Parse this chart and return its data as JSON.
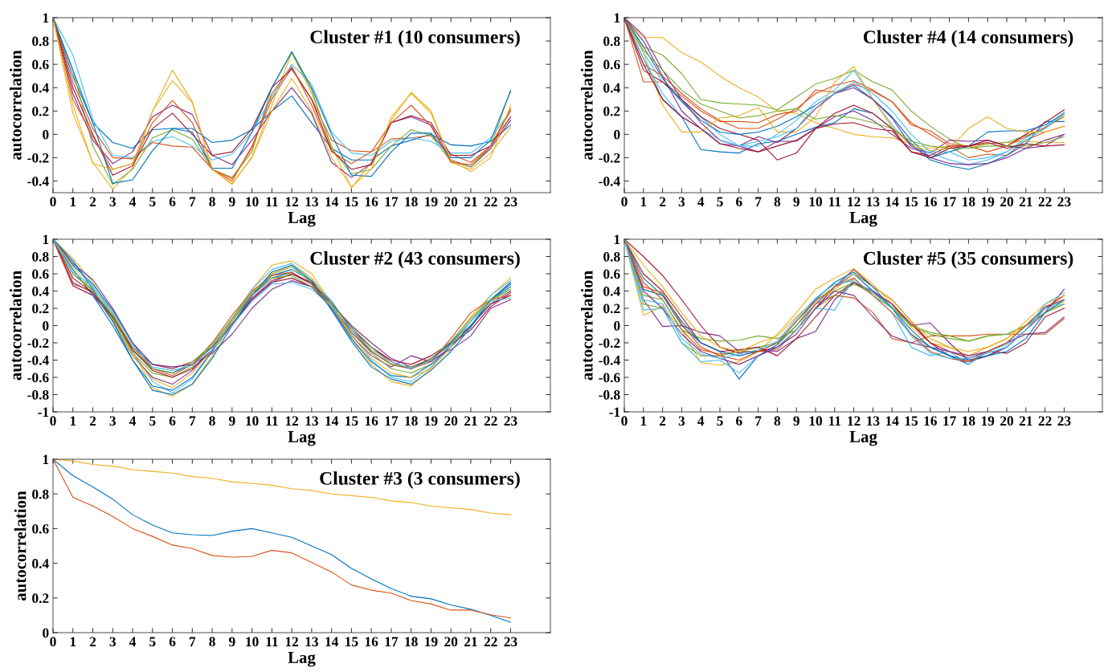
{
  "chart_data": [
    {
      "type": "line",
      "title": "Cluster #1 (10 consumers)",
      "xlabel": "Lag",
      "ylabel": "autocorrelation",
      "grid": false,
      "marker": "none",
      "line_style": "solid",
      "xlim": [
        0,
        25
      ],
      "xticks": [
        0,
        1,
        2,
        3,
        4,
        5,
        6,
        7,
        8,
        9,
        10,
        11,
        12,
        13,
        14,
        15,
        16,
        17,
        18,
        19,
        20,
        21,
        22,
        23
      ],
      "ylim": [
        -0.5,
        1
      ],
      "yticks": [
        -0.4,
        -0.2,
        0,
        0.2,
        0.4,
        0.6,
        0.8,
        1
      ],
      "x": [
        0,
        1,
        2,
        3,
        4,
        5,
        6,
        7,
        8,
        9,
        10,
        11,
        12,
        13,
        14,
        15,
        16,
        17,
        18,
        19,
        20,
        21,
        22,
        23
      ],
      "series": [
        {
          "color": "#0072bd",
          "values": [
            1,
            0.5,
            0.1,
            -0.07,
            -0.12,
            0.04,
            0.05,
            0.05,
            -0.07,
            -0.05,
            0.04,
            0.2,
            0.33,
            0.1,
            -0.12,
            -0.22,
            -0.22,
            -0.1,
            -0.05,
            0,
            -0.09,
            -0.1,
            -0.06,
            0.08
          ]
        },
        {
          "color": "#d95319",
          "values": [
            1,
            0.45,
            0.05,
            -0.2,
            -0.21,
            -0.07,
            -0.1,
            -0.11,
            -0.3,
            -0.4,
            -0.1,
            0.3,
            0.57,
            0.3,
            -0.05,
            -0.14,
            -0.15,
            -0.04,
            -0.03,
            -0.01,
            -0.17,
            -0.24,
            -0.1,
            0.22
          ]
        },
        {
          "color": "#edb120",
          "values": [
            1,
            0.18,
            -0.24,
            -0.47,
            -0.29,
            0.2,
            0.55,
            0.28,
            -0.3,
            -0.43,
            -0.19,
            0.25,
            0.7,
            0.35,
            -0.1,
            -0.46,
            -0.24,
            0.12,
            0.36,
            0.2,
            -0.24,
            -0.3,
            -0.16,
            0.06
          ]
        },
        {
          "color": "#7e2f8e",
          "values": [
            1,
            0.35,
            -0.05,
            -0.25,
            -0.15,
            0.15,
            0.25,
            0.17,
            -0.18,
            -0.26,
            -0.05,
            0.2,
            0.4,
            0.18,
            -0.24,
            -0.37,
            -0.25,
            0.1,
            0.15,
            0.08,
            -0.22,
            -0.28,
            -0.12,
            0.12
          ]
        },
        {
          "color": "#77ac30",
          "values": [
            1,
            0.55,
            -0.1,
            -0.43,
            -0.3,
            -0.03,
            0.04,
            -0.04,
            -0.3,
            -0.37,
            -0.15,
            0.4,
            0.7,
            0.38,
            -0.12,
            -0.34,
            -0.3,
            -0.1,
            0.04,
            -0.01,
            -0.23,
            -0.28,
            -0.1,
            0.38
          ]
        },
        {
          "color": "#4dbeee",
          "values": [
            1,
            0.68,
            0.13,
            -0.18,
            -0.2,
            -0.06,
            -0.02,
            -0.1,
            -0.22,
            -0.17,
            0.02,
            0.32,
            0.6,
            0.43,
            0.02,
            -0.16,
            -0.18,
            -0.06,
            -0.03,
            -0.06,
            -0.16,
            -0.16,
            -0.03,
            0.2
          ]
        },
        {
          "color": "#a2142f",
          "values": [
            1,
            0.4,
            0,
            -0.35,
            -0.27,
            0.05,
            0.18,
            0,
            -0.18,
            -0.15,
            0.05,
            0.4,
            0.56,
            0.3,
            -0.14,
            -0.3,
            -0.26,
            0.1,
            0.16,
            0.1,
            -0.18,
            -0.18,
            -0.1,
            0.15
          ]
        },
        {
          "color": "#0072bd",
          "values": [
            1,
            0.55,
            0.1,
            -0.42,
            -0.39,
            -0.14,
            0.05,
            0.02,
            -0.29,
            -0.29,
            0.02,
            0.4,
            0.71,
            0.4,
            0,
            -0.35,
            -0.36,
            -0.15,
            0.01,
            0.01,
            -0.2,
            -0.2,
            -0.05,
            0.37
          ]
        },
        {
          "color": "#d95319",
          "values": [
            1,
            0.3,
            -0.02,
            -0.3,
            -0.25,
            0.1,
            0.29,
            0.1,
            -0.3,
            -0.38,
            -0.12,
            0.35,
            0.58,
            0.25,
            -0.15,
            -0.25,
            -0.15,
            0.1,
            0.25,
            0.07,
            -0.24,
            -0.26,
            -0.1,
            0.2
          ]
        },
        {
          "color": "#edb120",
          "values": [
            1,
            0.25,
            -0.25,
            -0.3,
            -0.25,
            0.2,
            0.46,
            0.27,
            -0.3,
            -0.42,
            -0.2,
            0.2,
            0.48,
            0.2,
            -0.2,
            -0.45,
            -0.3,
            0.15,
            0.35,
            0.18,
            -0.22,
            -0.32,
            -0.2,
            0.25
          ]
        }
      ]
    },
    {
      "type": "line",
      "title": "Cluster #4 (14 consumers)",
      "xlabel": "Lag",
      "ylabel": "autocorrelation",
      "grid": false,
      "marker": "none",
      "line_style": "solid",
      "xlim": [
        0,
        25
      ],
      "xticks": [
        0,
        1,
        2,
        3,
        4,
        5,
        6,
        7,
        8,
        9,
        10,
        11,
        12,
        13,
        14,
        15,
        16,
        17,
        18,
        19,
        20,
        21,
        22,
        23
      ],
      "ylim": [
        -0.5,
        1
      ],
      "yticks": [
        -0.4,
        -0.2,
        0,
        0.2,
        0.4,
        0.6,
        0.8,
        1
      ],
      "x": [
        0,
        1,
        2,
        3,
        4,
        5,
        6,
        7,
        8,
        9,
        10,
        11,
        12,
        13,
        14,
        15,
        16,
        17,
        18,
        19,
        20,
        21,
        22,
        23
      ],
      "series": [
        {
          "color": "#edb120",
          "values": [
            1,
            0.83,
            0.83,
            0.7,
            0.62,
            0.5,
            0.4,
            0.32,
            0.2,
            0.18,
            0.1,
            0.05,
            0,
            -0.02,
            -0.03,
            -0.08,
            -0.12,
            -0.1,
            -0.1,
            -0.08,
            -0.07,
            -0.06,
            -0.07,
            -0.07
          ]
        },
        {
          "color": "#77ac30",
          "values": [
            1,
            0.75,
            0.68,
            0.52,
            0.3,
            0.27,
            0.26,
            0.25,
            0.21,
            0.32,
            0.43,
            0.48,
            0.55,
            0.45,
            0.38,
            0.2,
            0.07,
            -0.04,
            -0.12,
            -0.08,
            -0.07,
            -0.01,
            0.05,
            0.17
          ]
        },
        {
          "color": "#d95319",
          "values": [
            1,
            0.45,
            0.45,
            0.33,
            0.2,
            0.11,
            0.11,
            0.1,
            0.17,
            0.2,
            0.38,
            0.36,
            0.43,
            0.37,
            0.28,
            0.1,
            0,
            -0.1,
            -0.2,
            -0.17,
            -0.18,
            -0.05,
            0.02,
            0.07
          ]
        },
        {
          "color": "#0072bd",
          "values": [
            1,
            0.65,
            0.3,
            0.15,
            -0.13,
            -0.15,
            -0.16,
            -0.08,
            -0.06,
            0,
            0.06,
            0.1,
            0.22,
            0.18,
            0.05,
            -0.08,
            -0.22,
            -0.27,
            -0.3,
            -0.25,
            -0.18,
            -0.08,
            0.11,
            0.11
          ]
        },
        {
          "color": "#7e2f8e",
          "values": [
            1,
            0.8,
            0.5,
            0.2,
            0.05,
            -0.08,
            -0.1,
            -0.15,
            -0.06,
            -0.06,
            0.05,
            0.15,
            0.2,
            0.12,
            0,
            -0.12,
            -0.16,
            -0.05,
            -0.06,
            -0.05,
            -0.1,
            -0.12,
            -0.1,
            0
          ]
        },
        {
          "color": "#4dbeee",
          "values": [
            1,
            0.7,
            0.45,
            0.28,
            0.15,
            0,
            -0.1,
            -0.1,
            0,
            0.12,
            0.28,
            0.38,
            0.55,
            0.3,
            0.08,
            -0.1,
            -0.16,
            -0.22,
            -0.26,
            -0.22,
            -0.15,
            -0.03,
            0.06,
            0.19
          ]
        },
        {
          "color": "#a2142f",
          "values": [
            1,
            0.55,
            0.45,
            0.3,
            0.15,
            0.05,
            0,
            -0.05,
            -0.22,
            -0.16,
            0.05,
            0.09,
            0.1,
            0.05,
            0.03,
            -0.15,
            -0.18,
            -0.1,
            -0.1,
            -0.05,
            -0.1,
            0,
            0.1,
            0.21
          ]
        },
        {
          "color": "#0072bd",
          "values": [
            1,
            0.75,
            0.48,
            0.28,
            0.12,
            0.02,
            0,
            0.02,
            0.07,
            0.15,
            0.25,
            0.35,
            0.42,
            0.3,
            0.15,
            -0.05,
            -0.2,
            -0.15,
            -0.1,
            0.02,
            0.03,
            0.03,
            0.08,
            0.18
          ]
        },
        {
          "color": "#d95319",
          "values": [
            1,
            0.6,
            0.5,
            0.35,
            0.22,
            0.12,
            0.05,
            0.05,
            0.13,
            0.22,
            0.35,
            0.42,
            0.46,
            0.38,
            0.28,
            0.08,
            0.03,
            -0.08,
            -0.1,
            -0.15,
            -0.1,
            -0.02,
            0.06,
            0.15
          ]
        },
        {
          "color": "#edb120",
          "values": [
            1,
            0.7,
            0.25,
            0.02,
            0.02,
            0.14,
            0.16,
            0.23,
            0.02,
            0.02,
            0.15,
            0.45,
            0.58,
            0.3,
            0.06,
            -0.1,
            -0.14,
            -0.12,
            0.05,
            0.15,
            0.05,
            0.02,
            0.02,
            0.07
          ]
        },
        {
          "color": "#7e2f8e",
          "values": [
            1,
            0.85,
            0.55,
            0.3,
            0.1,
            -0.05,
            -0.1,
            -0.02,
            -0.07,
            0.05,
            0.22,
            0.35,
            0.4,
            0.3,
            0.14,
            -0.1,
            -0.2,
            -0.25,
            -0.26,
            -0.25,
            -0.2,
            -0.12,
            -0.05,
            0
          ]
        },
        {
          "color": "#77ac30",
          "values": [
            1,
            0.72,
            0.55,
            0.38,
            0.26,
            0.2,
            0.14,
            0.16,
            0.2,
            0.22,
            0.13,
            0.16,
            0.14,
            0.1,
            0.05,
            -0.06,
            -0.1,
            -0.12,
            -0.12,
            -0.1,
            -0.1,
            -0.1,
            -0.07,
            -0.02
          ]
        },
        {
          "color": "#4dbeee",
          "values": [
            1,
            0.65,
            0.35,
            0.15,
            0.05,
            -0.05,
            -0.1,
            -0.06,
            -0.02,
            0.05,
            0.25,
            0.35,
            0.45,
            0.35,
            0.2,
            0,
            -0.15,
            -0.15,
            -0.22,
            -0.2,
            -0.15,
            -0.05,
            0.05,
            0.18
          ]
        },
        {
          "color": "#a2142f",
          "values": [
            1,
            0.6,
            0.3,
            0.15,
            0.05,
            -0.08,
            -0.12,
            -0.15,
            -0.1,
            -0.05,
            0.05,
            0.18,
            0.25,
            0.18,
            0.05,
            -0.15,
            -0.2,
            -0.12,
            -0.1,
            -0.07,
            -0.12,
            -0.08,
            -0.1,
            -0.09
          ]
        }
      ]
    },
    {
      "type": "line",
      "title": "Cluster #2 (43 consumers)",
      "xlabel": "Lag",
      "ylabel": "autocorrelation",
      "grid": false,
      "marker": "none",
      "line_style": "solid",
      "xlim": [
        0,
        25
      ],
      "xticks": [
        0,
        1,
        2,
        3,
        4,
        5,
        6,
        7,
        8,
        9,
        10,
        11,
        12,
        13,
        14,
        15,
        16,
        17,
        18,
        19,
        20,
        21,
        22,
        23
      ],
      "ylim": [
        -1,
        1
      ],
      "yticks": [
        -1,
        -0.8,
        -0.6,
        -0.4,
        -0.2,
        0,
        0.2,
        0.4,
        0.6,
        0.8,
        1
      ],
      "x": [
        0,
        1,
        2,
        3,
        4,
        5,
        6,
        7,
        8,
        9,
        10,
        11,
        12,
        13,
        14,
        15,
        16,
        17,
        18,
        19,
        20,
        21,
        22,
        23
      ],
      "series": [
        {
          "color": "#edb120",
          "values": [
            1,
            0.78,
            0.5,
            0.15,
            -0.3,
            -0.72,
            -0.82,
            -0.68,
            -0.35,
            0.05,
            0.42,
            0.7,
            0.75,
            0.6,
            0.25,
            -0.15,
            -0.45,
            -0.65,
            -0.7,
            -0.5,
            -0.2,
            0.1,
            0.35,
            0.55
          ]
        },
        {
          "color": "#a2142f",
          "values": [
            1,
            0.46,
            0.35,
            0.1,
            -0.25,
            -0.45,
            -0.5,
            -0.42,
            -0.25,
            0,
            0.3,
            0.5,
            0.55,
            0.45,
            0.2,
            -0.05,
            -0.25,
            -0.4,
            -0.45,
            -0.35,
            -0.2,
            0,
            0.25,
            0.35
          ]
        },
        {
          "color": "#0072bd",
          "values": [
            1,
            0.7,
            0.48,
            0.18,
            -0.2,
            -0.5,
            -0.55,
            -0.45,
            -0.25,
            0.05,
            0.35,
            0.58,
            0.65,
            0.52,
            0.28,
            -0.05,
            -0.3,
            -0.45,
            -0.5,
            -0.4,
            -0.2,
            0.05,
            0.3,
            0.45
          ]
        },
        {
          "color": "#4dbeee",
          "values": [
            1,
            0.75,
            0.45,
            0.12,
            -0.3,
            -0.65,
            -0.78,
            -0.62,
            -0.3,
            0.08,
            0.42,
            0.65,
            0.72,
            0.55,
            0.25,
            -0.1,
            -0.4,
            -0.6,
            -0.65,
            -0.48,
            -0.22,
            0.05,
            0.35,
            0.52
          ]
        },
        {
          "color": "#7e2f8e",
          "values": [
            1,
            0.5,
            0.38,
            0.05,
            -0.35,
            -0.6,
            -0.68,
            -0.52,
            -0.28,
            0.02,
            0.3,
            0.5,
            0.6,
            0.48,
            0.2,
            -0.12,
            -0.35,
            -0.48,
            -0.35,
            -0.42,
            -0.25,
            0,
            0.25,
            0.4
          ]
        },
        {
          "color": "#77ac30",
          "values": [
            1,
            0.6,
            0.42,
            0.08,
            -0.32,
            -0.55,
            -0.6,
            -0.48,
            -0.22,
            0.08,
            0.38,
            0.6,
            0.68,
            0.5,
            0.22,
            -0.08,
            -0.32,
            -0.5,
            -0.55,
            -0.45,
            -0.25,
            0,
            0.28,
            0.42
          ]
        },
        {
          "color": "#0072bd",
          "values": [
            1,
            0.65,
            0.35,
            0,
            -0.4,
            -0.7,
            -0.75,
            -0.6,
            -0.3,
            0.05,
            0.35,
            0.55,
            0.62,
            0.48,
            0.2,
            -0.15,
            -0.42,
            -0.58,
            -0.6,
            -0.45,
            -0.25,
            0,
            0.3,
            0.48
          ]
        },
        {
          "color": "#7e2f8e",
          "values": [
            1,
            0.72,
            0.53,
            0.2,
            -0.2,
            -0.45,
            -0.48,
            -0.45,
            -0.32,
            -0.1,
            0.2,
            0.42,
            0.52,
            0.45,
            0.25,
            0,
            -0.2,
            -0.38,
            -0.48,
            -0.4,
            -0.28,
            -0.12,
            0.2,
            0.3
          ]
        },
        {
          "color": "#d95319",
          "values": [
            1,
            0.48,
            0.4,
            0.12,
            -0.28,
            -0.5,
            -0.58,
            -0.45,
            -0.2,
            0.12,
            0.4,
            0.58,
            0.62,
            0.48,
            0.22,
            -0.08,
            -0.3,
            -0.45,
            -0.5,
            -0.42,
            -0.15,
            0.15,
            0.3,
            0.35
          ]
        },
        {
          "color": "#edb120",
          "values": [
            1,
            0.68,
            0.4,
            0.05,
            -0.35,
            -0.62,
            -0.72,
            -0.55,
            -0.28,
            0.05,
            0.38,
            0.6,
            0.7,
            0.55,
            0.22,
            -0.12,
            -0.38,
            -0.55,
            -0.6,
            -0.5,
            -0.25,
            0.05,
            0.3,
            0.5
          ]
        },
        {
          "color": "#a2142f",
          "values": [
            1,
            0.55,
            0.38,
            0.1,
            -0.28,
            -0.52,
            -0.6,
            -0.5,
            -0.28,
            0,
            0.32,
            0.52,
            0.6,
            0.5,
            0.25,
            -0.02,
            -0.25,
            -0.42,
            -0.5,
            -0.38,
            -0.22,
            -0.05,
            0.22,
            0.38
          ]
        },
        {
          "color": "#0072bd",
          "values": [
            1,
            0.75,
            0.42,
            0.05,
            -0.4,
            -0.75,
            -0.8,
            -0.68,
            -0.38,
            0,
            0.35,
            0.62,
            0.7,
            0.52,
            0.18,
            -0.18,
            -0.48,
            -0.62,
            -0.68,
            -0.52,
            -0.3,
            -0.02,
            0.3,
            0.5
          ]
        },
        {
          "color": "#77ac30",
          "values": [
            1,
            0.6,
            0.4,
            0.12,
            -0.25,
            -0.5,
            -0.55,
            -0.42,
            -0.22,
            0.08,
            0.38,
            0.55,
            0.58,
            0.45,
            0.25,
            -0.02,
            -0.25,
            -0.45,
            -0.48,
            -0.38,
            -0.18,
            0.08,
            0.3,
            0.42
          ]
        },
        {
          "color": "#4dbeee",
          "values": [
            1,
            0.62,
            0.45,
            0.15,
            -0.22,
            -0.48,
            -0.52,
            -0.46,
            -0.28,
            0,
            0.28,
            0.48,
            0.5,
            0.42,
            0.22,
            -0.05,
            -0.28,
            -0.42,
            -0.5,
            -0.4,
            -0.22,
            0.05,
            0.28,
            0.32
          ]
        }
      ]
    },
    {
      "type": "line",
      "title": "Cluster #5 (35 consumers)",
      "xlabel": "Lag",
      "ylabel": "autocorrelation",
      "grid": false,
      "marker": "none",
      "line_style": "solid",
      "xlim": [
        0,
        25
      ],
      "xticks": [
        0,
        1,
        2,
        3,
        4,
        5,
        6,
        7,
        8,
        9,
        10,
        11,
        12,
        13,
        14,
        15,
        16,
        17,
        18,
        19,
        20,
        21,
        22,
        23
      ],
      "ylim": [
        -1,
        1
      ],
      "yticks": [
        -1,
        -0.8,
        -0.6,
        -0.4,
        -0.2,
        0,
        0.2,
        0.4,
        0.6,
        0.8,
        1
      ],
      "x": [
        0,
        1,
        2,
        3,
        4,
        5,
        6,
        7,
        8,
        9,
        10,
        11,
        12,
        13,
        14,
        15,
        16,
        17,
        18,
        19,
        20,
        21,
        22,
        23
      ],
      "series": [
        {
          "color": "#a2142f",
          "values": [
            1,
            0.8,
            0.58,
            0.3,
            0,
            -0.25,
            -0.32,
            -0.3,
            -0.25,
            -0.05,
            0.2,
            0.45,
            0.65,
            0.45,
            0.3,
            0.05,
            -0.2,
            -0.35,
            -0.42,
            -0.35,
            -0.25,
            -0.05,
            0.2,
            0.35
          ]
        },
        {
          "color": "#edb120",
          "values": [
            1,
            0.12,
            0.22,
            -0.05,
            -0.43,
            -0.46,
            -0.42,
            -0.3,
            -0.1,
            0.15,
            0.42,
            0.55,
            0.66,
            0.48,
            0.25,
            -0.02,
            -0.2,
            -0.25,
            -0.35,
            -0.25,
            -0.15,
            0,
            0.15,
            0.28
          ]
        },
        {
          "color": "#0072bd",
          "values": [
            1,
            0.42,
            0.35,
            0,
            -0.2,
            -0.3,
            -0.62,
            -0.35,
            -0.22,
            0,
            0.25,
            0.45,
            0.6,
            0.4,
            0.2,
            -0.1,
            -0.25,
            -0.35,
            -0.45,
            -0.3,
            -0.2,
            0,
            0.2,
            0.3
          ]
        },
        {
          "color": "#7e2f8e",
          "values": [
            1,
            0.3,
            -0.01,
            0,
            -0.08,
            -0.12,
            -0.3,
            -0.3,
            -0.3,
            -0.15,
            -0.07,
            0.3,
            0.5,
            0.4,
            0.25,
            0,
            0.03,
            -0.2,
            -0.4,
            -0.35,
            -0.25,
            -0.05,
            0.15,
            0.42
          ]
        },
        {
          "color": "#d95319",
          "values": [
            1,
            0.5,
            0.3,
            -0.05,
            -0.28,
            -0.33,
            -0.3,
            -0.3,
            -0.28,
            -0.05,
            0.25,
            0.35,
            0.32,
            0.15,
            -0.15,
            -0.2,
            -0.12,
            -0.12,
            -0.12,
            -0.1,
            -0.1,
            -0.1,
            -0.1,
            0.08
          ]
        },
        {
          "color": "#77ac30",
          "values": [
            1,
            0.25,
            0.2,
            -0.2,
            -0.35,
            -0.35,
            -0.3,
            -0.25,
            -0.2,
            0,
            0.3,
            0.4,
            0.5,
            0.35,
            0.2,
            0,
            -0.1,
            -0.15,
            -0.18,
            -0.12,
            -0.1,
            0,
            0.15,
            0.25
          ]
        },
        {
          "color": "#a2142f",
          "values": [
            1,
            0.6,
            0.4,
            0.1,
            -0.2,
            -0.3,
            -0.28,
            -0.25,
            -0.35,
            -0.15,
            0.1,
            0.35,
            0.5,
            0.38,
            0.25,
            0.02,
            -0.2,
            -0.3,
            -0.38,
            -0.3,
            -0.32,
            -0.2,
            0.1,
            0.2
          ]
        },
        {
          "color": "#77ac30",
          "values": [
            1,
            0.35,
            0.3,
            -0.05,
            -0.15,
            -0.18,
            -0.17,
            -0.12,
            -0.15,
            -0.05,
            0.2,
            0.35,
            0.48,
            0.38,
            0.22,
            0,
            -0.08,
            -0.12,
            -0.18,
            -0.12,
            -0.1,
            0,
            0.15,
            0.25
          ]
        },
        {
          "color": "#4dbeee",
          "values": [
            1,
            0.18,
            0.2,
            -0.2,
            -0.42,
            -0.4,
            -0.55,
            -0.35,
            -0.25,
            -0.05,
            0.2,
            0.18,
            0.55,
            0.35,
            0.15,
            -0.25,
            -0.35,
            -0.3,
            -0.45,
            -0.3,
            -0.22,
            -0.05,
            0.2,
            0.25
          ]
        },
        {
          "color": "#edb120",
          "values": [
            1,
            0.7,
            0.45,
            0.15,
            -0.12,
            -0.25,
            -0.3,
            -0.2,
            -0.12,
            0.1,
            0.3,
            0.42,
            0.6,
            0.45,
            0.3,
            0.05,
            -0.15,
            -0.25,
            -0.3,
            -0.25,
            -0.15,
            0.05,
            0.25,
            0.35
          ]
        },
        {
          "color": "#7e2f8e",
          "values": [
            1,
            0.4,
            0.2,
            -0.1,
            -0.3,
            -0.38,
            -0.45,
            -0.35,
            -0.25,
            -0.1,
            0.2,
            0.4,
            0.35,
            0.1,
            -0.12,
            -0.2,
            -0.25,
            -0.3,
            -0.35,
            -0.3,
            -0.2,
            -0.1,
            -0.08,
            0.1
          ]
        },
        {
          "color": "#0072bd",
          "values": [
            1,
            0.55,
            0.35,
            0.05,
            -0.2,
            -0.3,
            -0.35,
            -0.3,
            -0.2,
            0.05,
            0.3,
            0.5,
            0.62,
            0.45,
            0.2,
            -0.05,
            -0.25,
            -0.35,
            -0.4,
            -0.35,
            -0.3,
            -0.15,
            0.15,
            0.3
          ]
        },
        {
          "color": "#d95319",
          "values": [
            1,
            0.45,
            0.38,
            0.02,
            -0.25,
            -0.35,
            -0.4,
            -0.3,
            -0.2,
            0.05,
            0.28,
            0.45,
            0.55,
            0.35,
            0.15,
            -0.1,
            -0.3,
            -0.38,
            -0.42,
            -0.3,
            -0.2,
            0,
            0.22,
            0.3
          ]
        },
        {
          "color": "#4dbeee",
          "values": [
            1,
            0.3,
            0.25,
            -0.15,
            -0.33,
            -0.38,
            -0.33,
            -0.28,
            -0.18,
            0.08,
            0.32,
            0.48,
            0.52,
            0.38,
            0.2,
            -0.12,
            -0.32,
            -0.38,
            -0.38,
            -0.32,
            -0.25,
            -0.05,
            0.25,
            0.38
          ]
        }
      ]
    },
    {
      "type": "line",
      "title": "Cluster #3 (3 consumers)",
      "xlabel": "Lag",
      "ylabel": "autocorrelation",
      "grid": false,
      "marker": "none",
      "line_style": "solid",
      "xlim": [
        0,
        25
      ],
      "xticks": [
        0,
        1,
        2,
        3,
        4,
        5,
        6,
        7,
        8,
        9,
        10,
        11,
        12,
        13,
        14,
        15,
        16,
        17,
        18,
        19,
        20,
        21,
        22,
        23
      ],
      "ylim": [
        0,
        1
      ],
      "yticks": [
        0,
        0.2,
        0.4,
        0.6,
        0.8,
        1
      ],
      "x": [
        0,
        1,
        2,
        3,
        4,
        5,
        6,
        7,
        8,
        9,
        10,
        11,
        12,
        13,
        14,
        15,
        16,
        17,
        18,
        19,
        20,
        21,
        22,
        23
      ],
      "series": [
        {
          "color": "#0072bd",
          "values": [
            1,
            0.905,
            0.84,
            0.77,
            0.68,
            0.62,
            0.575,
            0.565,
            0.56,
            0.585,
            0.6,
            0.575,
            0.55,
            0.5,
            0.45,
            0.37,
            0.31,
            0.255,
            0.21,
            0.195,
            0.16,
            0.135,
            0.1,
            0.06
          ]
        },
        {
          "color": "#d95319",
          "values": [
            1,
            0.78,
            0.73,
            0.67,
            0.6,
            0.555,
            0.505,
            0.485,
            0.445,
            0.435,
            0.44,
            0.475,
            0.46,
            0.405,
            0.35,
            0.275,
            0.245,
            0.228,
            0.185,
            0.165,
            0.13,
            0.13,
            0.103,
            0.085
          ]
        },
        {
          "color": "#edb120",
          "values": [
            1,
            0.99,
            0.97,
            0.96,
            0.94,
            0.93,
            0.92,
            0.9,
            0.89,
            0.87,
            0.86,
            0.85,
            0.83,
            0.82,
            0.8,
            0.79,
            0.78,
            0.76,
            0.75,
            0.73,
            0.72,
            0.71,
            0.69,
            0.68
          ]
        }
      ]
    }
  ]
}
